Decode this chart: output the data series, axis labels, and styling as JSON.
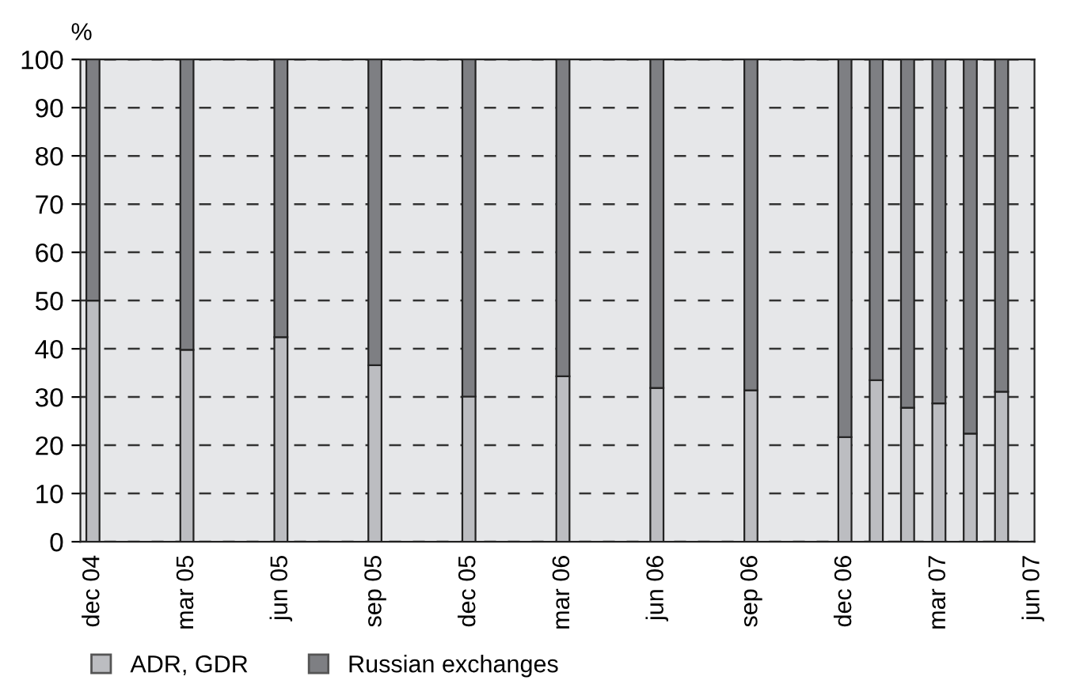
{
  "chart_data": {
    "type": "bar",
    "stacked": true,
    "ylabel": "%",
    "categories": [
      "dec 04",
      null,
      null,
      "mar 05",
      null,
      null,
      "jun 05",
      null,
      null,
      "sep 05",
      null,
      null,
      "dec 05",
      null,
      null,
      "mar 06",
      null,
      null,
      "jun 06",
      null,
      null,
      "sep 06",
      null,
      null,
      "dec 06",
      null,
      null,
      "mar 07",
      null,
      null,
      "jun 07"
    ],
    "series": [
      {
        "name": "ADR, GDR",
        "color": "#bcbdc1",
        "values": [
          50,
          null,
          null,
          39.8,
          null,
          null,
          42.4,
          null,
          null,
          36.6,
          null,
          null,
          30.1,
          null,
          null,
          34.3,
          null,
          null,
          31.9,
          null,
          null,
          31.4,
          null,
          null,
          21.7,
          33.5,
          27.8,
          28.7,
          22.4,
          31.1,
          null
        ]
      },
      {
        "name": "Russian exchanges",
        "color": "#7e7f83",
        "values": [
          50,
          null,
          null,
          60.2,
          null,
          null,
          57.6,
          null,
          null,
          63.4,
          null,
          null,
          69.9,
          null,
          null,
          65.7,
          null,
          null,
          68.1,
          null,
          null,
          68.6,
          null,
          null,
          78.3,
          66.5,
          72.2,
          71.3,
          77.6,
          68.9,
          null
        ]
      }
    ],
    "ylim": [
      0,
      100
    ],
    "yticks": [
      0,
      10,
      20,
      30,
      40,
      50,
      60,
      70,
      80,
      90,
      100
    ],
    "grid": "y",
    "legend": "bottom left"
  }
}
